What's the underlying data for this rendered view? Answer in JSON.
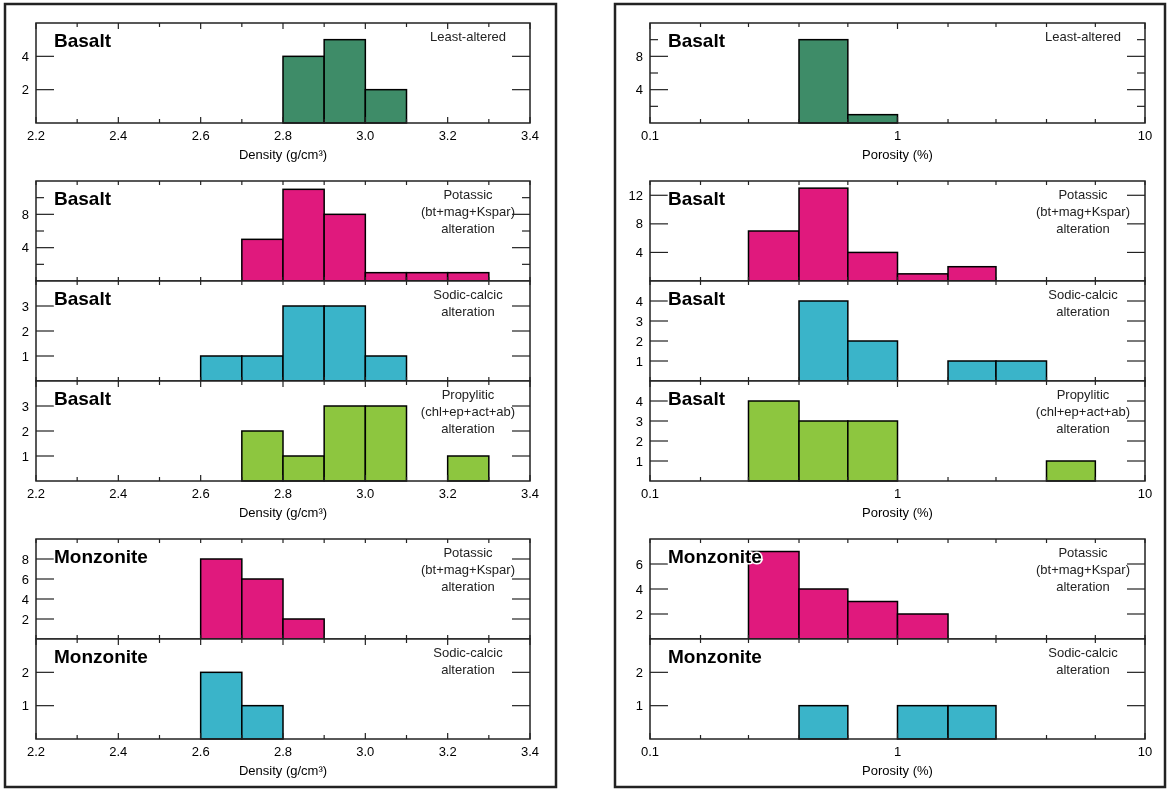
{
  "chart_data": [
    {
      "type": "histogram",
      "title": "Basalt",
      "annotations": [
        "Least-altered"
      ],
      "color": "#3e8c68",
      "bins": [
        2.8,
        2.9,
        3.0,
        3.1
      ],
      "values": [
        4,
        5,
        2
      ],
      "xlim": [
        2.2,
        3.4
      ],
      "xticks": [
        2.2,
        {
          "value": 2.3,
          "label": null
        },
        2.4,
        {
          "value": 2.5,
          "label": null
        },
        2.6,
        {
          "value": 2.7,
          "label": null
        },
        2.8,
        {
          "value": 2.9,
          "label": null
        },
        {
          "value": 3.0,
          "label": "3.0"
        },
        {
          "value": 3.1,
          "label": null
        },
        3.2,
        {
          "value": 3.3,
          "label": null
        },
        3.4
      ],
      "ylim": [
        0,
        6
      ],
      "yticks": [
        2,
        4
      ],
      "xlabel": "Density (g/cm³)"
    },
    {
      "type": "histogram",
      "title": "Basalt",
      "annotations": [
        "Potassic\n(bt+mag+Kspar)\nalteration"
      ],
      "color": "#e0197d",
      "bins": [
        2.7,
        2.8,
        2.9,
        3.0,
        3.1,
        3.2,
        3.3
      ],
      "values": [
        5,
        11,
        8,
        1,
        1,
        1
      ],
      "xlim": [
        2.2,
        3.4
      ],
      "xticks": [
        {
          "value": 2.2,
          "label": null
        },
        {
          "value": 2.3,
          "label": null
        },
        {
          "value": 2.4,
          "label": null
        },
        {
          "value": 2.5,
          "label": null
        },
        {
          "value": 2.6,
          "label": null
        },
        {
          "value": 2.7,
          "label": null
        },
        {
          "value": 2.8,
          "label": null
        },
        {
          "value": 2.9,
          "label": null
        },
        {
          "value": 3.0,
          "label": null
        },
        {
          "value": 3.1,
          "label": null
        },
        {
          "value": 3.2,
          "label": null
        },
        {
          "value": 3.3,
          "label": null
        },
        {
          "value": 3.4,
          "label": null
        }
      ],
      "ylim": [
        0,
        12
      ],
      "yticks": [
        {
          "value": 2,
          "label": null
        },
        4,
        {
          "value": 6,
          "label": null
        },
        8,
        {
          "value": 10,
          "label": null
        }
      ],
      "tick_labels": "y"
    },
    {
      "type": "histogram",
      "title": "Basalt",
      "annotations": [
        "Sodic-calcic\nalteration"
      ],
      "color": "#3ab4c9",
      "bins": [
        2.6,
        2.7,
        2.8,
        2.9,
        3.0,
        3.1
      ],
      "values": [
        1,
        1,
        3,
        3,
        1
      ],
      "xlim": [
        2.2,
        3.4
      ],
      "xticks": [
        {
          "value": 2.2,
          "label": null
        },
        {
          "value": 2.3,
          "label": null
        },
        {
          "value": 2.4,
          "label": null
        },
        {
          "value": 2.5,
          "label": null
        },
        {
          "value": 2.6,
          "label": null
        },
        {
          "value": 2.7,
          "label": null
        },
        {
          "value": 2.8,
          "label": null
        },
        {
          "value": 2.9,
          "label": null
        },
        {
          "value": 3.0,
          "label": null
        },
        {
          "value": 3.1,
          "label": null
        },
        {
          "value": 3.2,
          "label": null
        },
        {
          "value": 3.3,
          "label": null
        },
        {
          "value": 3.4,
          "label": null
        }
      ],
      "ylim": [
        0,
        4
      ],
      "yticks": [
        1,
        2,
        3
      ],
      "tick_labels": "y"
    },
    {
      "type": "histogram",
      "title": "Basalt",
      "annotations": [
        "Propylitic\n(chl+ep+act+ab)\nalteration"
      ],
      "color": "#8dc63f",
      "bins": [
        2.7,
        2.8,
        2.9,
        3.0,
        3.1,
        3.2,
        3.3
      ],
      "values": [
        2,
        1,
        3,
        3,
        0,
        1
      ],
      "xlim": [
        2.2,
        3.4
      ],
      "xticks": [
        2.2,
        {
          "value": 2.3,
          "label": null
        },
        2.4,
        {
          "value": 2.5,
          "label": null
        },
        2.6,
        {
          "value": 2.7,
          "label": null
        },
        2.8,
        {
          "value": 2.9,
          "label": null
        },
        {
          "value": 3.0,
          "label": "3.0"
        },
        {
          "value": 3.1,
          "label": null
        },
        3.2,
        {
          "value": 3.3,
          "label": null
        },
        3.4
      ],
      "ylim": [
        0,
        4
      ],
      "yticks": [
        1,
        2,
        3
      ],
      "xlabel": "Density (g/cm³)"
    },
    {
      "type": "histogram",
      "title": "Monzonite",
      "annotations": [
        "Potassic\n(bt+mag+Kspar)\nalteration"
      ],
      "color": "#e0197d",
      "bins": [
        2.6,
        2.7,
        2.8,
        2.9
      ],
      "values": [
        8,
        6,
        2
      ],
      "xlim": [
        2.2,
        3.4
      ],
      "xticks": [
        {
          "value": 2.2,
          "label": null
        },
        {
          "value": 2.3,
          "label": null
        },
        {
          "value": 2.4,
          "label": null
        },
        {
          "value": 2.5,
          "label": null
        },
        {
          "value": 2.6,
          "label": null
        },
        {
          "value": 2.7,
          "label": null
        },
        {
          "value": 2.8,
          "label": null
        },
        {
          "value": 2.9,
          "label": null
        },
        {
          "value": 3.0,
          "label": null
        },
        {
          "value": 3.1,
          "label": null
        },
        {
          "value": 3.2,
          "label": null
        },
        {
          "value": 3.3,
          "label": null
        },
        {
          "value": 3.4,
          "label": null
        }
      ],
      "ylim": [
        0,
        10
      ],
      "yticks": [
        2,
        4,
        6,
        8
      ],
      "tick_labels": "y"
    },
    {
      "type": "histogram",
      "title": "Monzonite",
      "annotations": [
        "Sodic-calcic\nalteration"
      ],
      "color": "#3ab4c9",
      "bins": [
        2.6,
        2.7,
        2.8
      ],
      "values": [
        2,
        1
      ],
      "xlim": [
        2.2,
        3.4
      ],
      "xticks": [
        2.2,
        {
          "value": 2.3,
          "label": null
        },
        2.4,
        {
          "value": 2.5,
          "label": null
        },
        2.6,
        {
          "value": 2.7,
          "label": null
        },
        2.8,
        {
          "value": 2.9,
          "label": null
        },
        {
          "value": 3.0,
          "label": "3.0"
        },
        {
          "value": 3.1,
          "label": null
        },
        3.2,
        {
          "value": 3.3,
          "label": null
        },
        3.4
      ],
      "ylim": [
        0,
        3
      ],
      "yticks": [
        1,
        2
      ],
      "xlabel": "Density (g/cm³)"
    },
    {
      "type": "histogram",
      "title": "Basalt",
      "annotations": [
        "Least-altered"
      ],
      "color": "#3e8c68",
      "bins": [
        0.4,
        0.63,
        1
      ],
      "values": [
        10,
        1
      ],
      "log": "x",
      "xlim": [
        0.1,
        10
      ],
      "xticks": [
        0.1,
        {
          "value": 0.16,
          "label": null
        },
        {
          "value": 0.25,
          "label": null
        },
        {
          "value": 0.4,
          "label": null
        },
        {
          "value": 0.63,
          "label": null
        },
        1,
        {
          "value": 1.6,
          "label": null
        },
        {
          "value": 2.5,
          "label": null
        },
        {
          "value": 4,
          "label": null
        },
        {
          "value": 6.3,
          "label": null
        },
        10
      ],
      "ylim": [
        0,
        12
      ],
      "yticks": [
        {
          "value": 2,
          "label": null
        },
        4,
        {
          "value": 6,
          "label": null
        },
        8,
        {
          "value": 10,
          "label": null
        }
      ],
      "xlabel": "Porosity (%)"
    },
    {
      "type": "histogram",
      "title": "Basalt",
      "annotations": [
        "Potassic\n(bt+mag+Kspar)\nalteration"
      ],
      "color": "#e0197d",
      "bins": [
        0.25,
        0.4,
        0.63,
        1,
        1.6,
        2.5
      ],
      "values": [
        7,
        13,
        4,
        1,
        2
      ],
      "log": "x",
      "xlim": [
        0.1,
        10
      ],
      "xticks": [
        {
          "value": 0.1,
          "label": null
        },
        {
          "value": 0.16,
          "label": null
        },
        {
          "value": 0.25,
          "label": null
        },
        {
          "value": 0.4,
          "label": null
        },
        {
          "value": 0.63,
          "label": null
        },
        {
          "value": 1,
          "label": null
        },
        {
          "value": 1.6,
          "label": null
        },
        {
          "value": 2.5,
          "label": null
        },
        {
          "value": 4,
          "label": null
        },
        {
          "value": 6.3,
          "label": null
        },
        {
          "value": 10,
          "label": null
        }
      ],
      "ylim": [
        0,
        14
      ],
      "yticks": [
        4,
        8,
        12
      ],
      "tick_labels": "y"
    },
    {
      "type": "histogram",
      "title": "Basalt",
      "annotations": [
        "Sodic-calcic\nalteration"
      ],
      "color": "#3ab4c9",
      "bins": [
        0.4,
        0.63,
        1,
        1.6,
        2.5,
        4
      ],
      "values": [
        4,
        2,
        0,
        1,
        1
      ],
      "log": "x",
      "xlim": [
        0.1,
        10
      ],
      "xticks": [
        {
          "value": 0.1,
          "label": null
        },
        {
          "value": 0.16,
          "label": null
        },
        {
          "value": 0.25,
          "label": null
        },
        {
          "value": 0.4,
          "label": null
        },
        {
          "value": 0.63,
          "label": null
        },
        {
          "value": 1,
          "label": null
        },
        {
          "value": 1.6,
          "label": null
        },
        {
          "value": 2.5,
          "label": null
        },
        {
          "value": 4,
          "label": null
        },
        {
          "value": 6.3,
          "label": null
        },
        {
          "value": 10,
          "label": null
        }
      ],
      "ylim": [
        0,
        5
      ],
      "yticks": [
        1,
        2,
        3,
        4
      ],
      "tick_labels": "y"
    },
    {
      "type": "histogram",
      "title": "Basalt",
      "annotations": [
        "Propylitic\n(chl+ep+act+ab)\nalteration"
      ],
      "color": "#8dc63f",
      "bins": [
        0.25,
        0.4,
        0.63,
        1,
        4,
        6.3
      ],
      "values": [
        4,
        3,
        3,
        0,
        1
      ],
      "log": "x",
      "xlim": [
        0.1,
        10
      ],
      "xticks": [
        0.1,
        {
          "value": 0.16,
          "label": null
        },
        {
          "value": 0.25,
          "label": null
        },
        {
          "value": 0.4,
          "label": null
        },
        {
          "value": 0.63,
          "label": null
        },
        1,
        {
          "value": 1.6,
          "label": null
        },
        {
          "value": 2.5,
          "label": null
        },
        {
          "value": 4,
          "label": null
        },
        {
          "value": 6.3,
          "label": null
        },
        10
      ],
      "ylim": [
        0,
        5
      ],
      "yticks": [
        1,
        2,
        3,
        4
      ],
      "xlabel": "Porosity (%)"
    },
    {
      "type": "histogram",
      "title": "Monzonite",
      "annotations": [
        "Potassic\n(bt+mag+Kspar)\nalteration"
      ],
      "color": "#e0197d",
      "bins": [
        0.25,
        0.4,
        0.63,
        1,
        1.6
      ],
      "values": [
        7,
        4,
        3,
        2
      ],
      "log": "x",
      "xlim": [
        0.1,
        10
      ],
      "xticks": [
        {
          "value": 0.1,
          "label": null
        },
        {
          "value": 0.16,
          "label": null
        },
        {
          "value": 0.25,
          "label": null
        },
        {
          "value": 0.4,
          "label": null
        },
        {
          "value": 0.63,
          "label": null
        },
        {
          "value": 1,
          "label": null
        },
        {
          "value": 1.6,
          "label": null
        },
        {
          "value": 2.5,
          "label": null
        },
        {
          "value": 4,
          "label": null
        },
        {
          "value": 6.3,
          "label": null
        },
        {
          "value": 10,
          "label": null
        }
      ],
      "ylim": [
        0,
        8
      ],
      "yticks": [
        2,
        4,
        6
      ],
      "tick_labels": "y"
    },
    {
      "type": "histogram",
      "title": "Monzonite",
      "annotations": [
        "Sodic-calcic\nalteration"
      ],
      "color": "#3ab4c9",
      "bins": [
        0.4,
        0.63,
        1,
        1.6,
        2.5
      ],
      "values": [
        1,
        0,
        1,
        1
      ],
      "log": "x",
      "xlim": [
        0.1,
        10
      ],
      "xticks": [
        0.1,
        {
          "value": 0.16,
          "label": null
        },
        {
          "value": 0.25,
          "label": null
        },
        {
          "value": 0.4,
          "label": null
        },
        {
          "value": 0.63,
          "label": null
        },
        1,
        {
          "value": 1.6,
          "label": null
        },
        {
          "value": 2.5,
          "label": null
        },
        {
          "value": 4,
          "label": null
        },
        {
          "value": 6.3,
          "label": null
        },
        10
      ],
      "ylim": [
        0,
        3
      ],
      "yticks": [
        1,
        2
      ],
      "xlabel": "Porosity (%)"
    }
  ]
}
